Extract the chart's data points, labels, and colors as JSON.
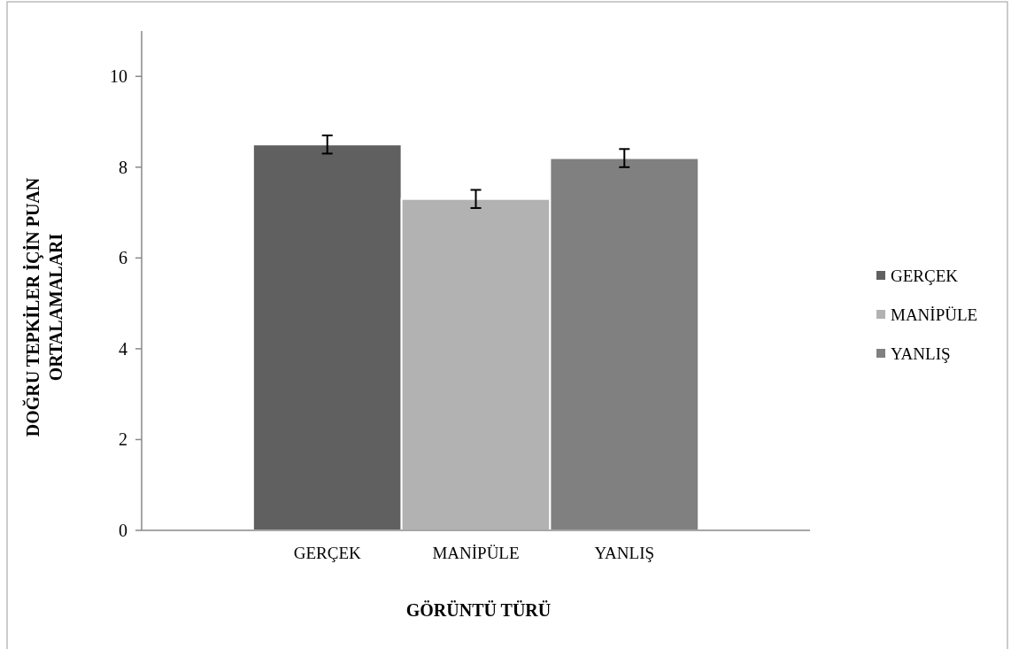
{
  "chart_data": {
    "type": "bar",
    "xlabel": "GÖRÜNTÜ TÜRÜ",
    "ylabel": "DOĞRU TEPKİLER İÇİN PUAN ORTALAMALARI",
    "categories": [
      "GERÇEK",
      "MANİPÜLE",
      "YANLIŞ"
    ],
    "series": [
      {
        "name": "GERÇEK",
        "color": "#606060",
        "values": [
          8.5,
          null,
          null
        ],
        "errors": [
          0.2,
          null,
          null
        ]
      },
      {
        "name": "MANİPÜLE",
        "color": "#b2b2b2",
        "values": [
          null,
          7.3,
          null
        ],
        "errors": [
          null,
          0.2,
          null
        ]
      },
      {
        "name": "YANLIŞ",
        "color": "#808080",
        "values": [
          null,
          null,
          8.2
        ],
        "errors": [
          null,
          null,
          0.2
        ]
      }
    ],
    "ylim": [
      0,
      11
    ],
    "yticks": [
      0,
      2,
      4,
      6,
      8,
      10
    ],
    "legend": "right"
  }
}
